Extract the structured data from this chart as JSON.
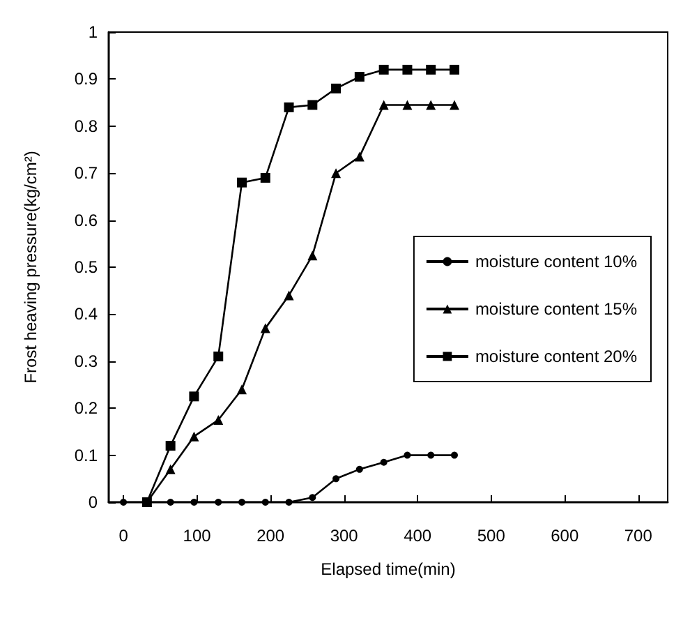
{
  "chart_data": {
    "type": "line",
    "xlabel": "Elapsed time(min)",
    "ylabel": "Frost heaving pressure(kg/cm²)",
    "xlim": [
      -20,
      740
    ],
    "xticks": [
      0,
      100,
      200,
      300,
      400,
      500,
      600,
      700
    ],
    "ylim": [
      0,
      1
    ],
    "yticks": [
      0,
      0.1,
      0.2,
      0.3,
      0.4,
      0.5,
      0.6,
      0.7,
      0.8,
      0.9,
      1
    ],
    "grid": false,
    "legend": "right",
    "line_style": "solid",
    "series": [
      {
        "name": "moisture content 10%",
        "color": "#000000",
        "marker": "circle",
        "x": [
          0,
          64,
          96,
          129,
          161,
          193,
          225,
          257,
          289,
          321,
          354,
          386,
          418,
          450
        ],
        "values": [
          0,
          0,
          0,
          0,
          0,
          0,
          0,
          0.01,
          0.05,
          0.07,
          0.085,
          0.1,
          0.1,
          0.1
        ]
      },
      {
        "name": "moisture content 15%",
        "color": "#000000",
        "marker": "triangle",
        "x": [
          32,
          64,
          96,
          129,
          161,
          193,
          225,
          257,
          289,
          321,
          354,
          386,
          418,
          450
        ],
        "values": [
          0,
          0.07,
          0.14,
          0.175,
          0.24,
          0.37,
          0.44,
          0.525,
          0.7,
          0.735,
          0.845,
          0.845,
          0.845,
          0.845
        ]
      },
      {
        "name": "moisture content 20%",
        "color": "#000000",
        "marker": "square",
        "x": [
          32,
          64,
          96,
          129,
          161,
          193,
          225,
          257,
          289,
          321,
          354,
          386,
          418,
          450
        ],
        "values": [
          0,
          0.12,
          0.225,
          0.31,
          0.68,
          0.69,
          0.84,
          0.845,
          0.88,
          0.905,
          0.92,
          0.92,
          0.92,
          0.92
        ]
      }
    ]
  }
}
